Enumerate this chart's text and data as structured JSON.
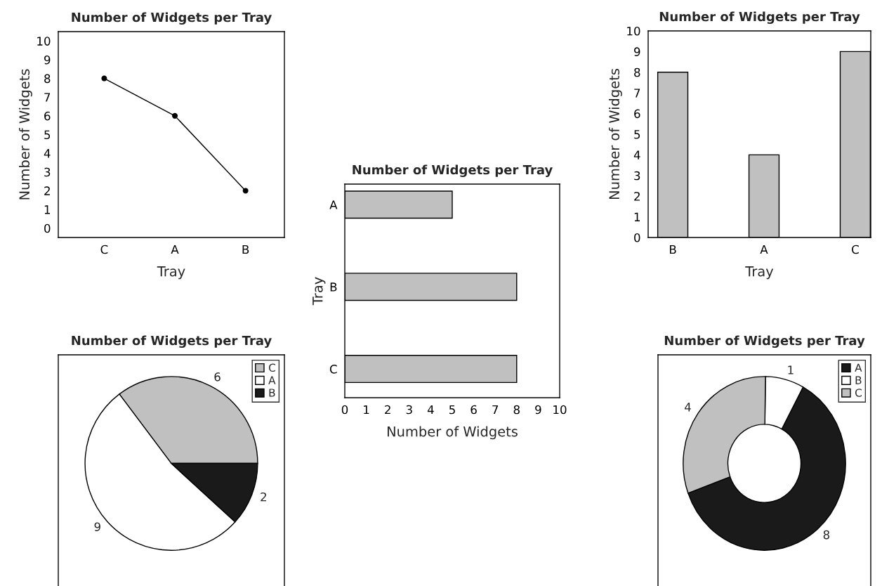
{
  "chart_data": [
    {
      "type": "line",
      "title": "Number of Widgets per Tray",
      "xlabel": "Tray",
      "ylabel": "Number of Widgets",
      "categories": [
        "C",
        "A",
        "B"
      ],
      "values": [
        8,
        6,
        2
      ],
      "color": "#000000",
      "marker": "circle",
      "ylim": [
        -0.5,
        10.5
      ],
      "yticks": [
        0,
        1,
        2,
        3,
        4,
        5,
        6,
        7,
        8,
        9,
        10
      ],
      "grid": false,
      "legend": false
    },
    {
      "type": "bar",
      "title": "Number of Widgets per Tray",
      "xlabel": "Tray",
      "ylabel": "Number of Widgets",
      "categories": [
        "B",
        "A",
        "C"
      ],
      "values": [
        8,
        4,
        9
      ],
      "color": "#c0c0c0",
      "ylim": [
        0,
        10
      ],
      "yticks": [
        0,
        1,
        2,
        3,
        4,
        5,
        6,
        7,
        8,
        9,
        10
      ],
      "grid": false,
      "legend": false
    },
    {
      "type": "bar",
      "orientation": "horizontal",
      "title": "Number of Widgets per Tray",
      "xlabel": "Number of Widgets",
      "ylabel": "Tray",
      "categories": [
        "A",
        "B",
        "C"
      ],
      "values": [
        5,
        8,
        8
      ],
      "color": "#c0c0c0",
      "xlim": [
        0,
        10
      ],
      "xticks": [
        0,
        1,
        2,
        3,
        4,
        5,
        6,
        7,
        8,
        9,
        10
      ],
      "grid": false,
      "legend": false
    },
    {
      "type": "pie",
      "title": "Number of Widgets per Tray",
      "categories": [
        "C",
        "A",
        "B"
      ],
      "values": [
        6,
        9,
        2
      ],
      "colors": [
        "#c0c0c0",
        "#ffffff",
        "#1a1a1a"
      ],
      "data_labels": true,
      "legend": "top right"
    },
    {
      "type": "donut",
      "title": "Number of Widgets per Tray",
      "categories": [
        "A",
        "B",
        "C"
      ],
      "values": [
        8,
        1,
        4
      ],
      "colors": [
        "#1a1a1a",
        "#ffffff",
        "#c0c0c0"
      ],
      "data_labels": true,
      "legend": "top right"
    }
  ]
}
